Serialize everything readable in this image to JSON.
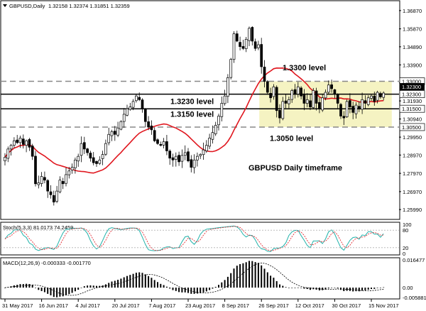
{
  "header": {
    "symbol": "GBPUSD,Daily",
    "ohlc": "1.32158 1.32374 1.31851 1.32359"
  },
  "chart_data": {
    "type": "candlestick",
    "symbol": "GBPUSD",
    "timeframe": "Daily",
    "title": "GBPUSD Daily timeframe",
    "yticks": [
      "1.36870",
      "1.35870",
      "1.34890",
      "1.33900",
      "1.32920",
      "1.31930",
      "1.30940",
      "1.29950",
      "1.28970",
      "1.27970",
      "1.26970",
      "1.25990"
    ],
    "ylim": [
      1.2549,
      1.3737
    ],
    "xticks": [
      {
        "label": "31 May 2017",
        "i": 0
      },
      {
        "label": "16 Jun 2017",
        "i": 12
      },
      {
        "label": "4 Jul 2017",
        "i": 24
      },
      {
        "label": "20 Jul 2017",
        "i": 36
      },
      {
        "label": "7 Aug 2017",
        "i": 48
      },
      {
        "label": "23 Aug 2017",
        "i": 60
      },
      {
        "label": "8 Sep 2017",
        "i": 72
      },
      {
        "label": "26 Sep 2017",
        "i": 84
      },
      {
        "label": "12 Oct 2017",
        "i": 96
      },
      {
        "label": "30 Oct 2017",
        "i": 108
      },
      {
        "label": "15 Nov 2017",
        "i": 120
      }
    ],
    "price_labels": [
      "1.33000",
      "1.32300",
      "1.31500",
      "1.30500"
    ],
    "levels": [
      {
        "price": 1.33,
        "style": "dashed",
        "label": "1.3300 level",
        "label_price": 1.3375
      },
      {
        "price": 1.323,
        "style": "solid",
        "label": "1.3230 level",
        "label_price": 1.3192
      },
      {
        "price": 1.315,
        "style": "solid",
        "label": "1.3150 level",
        "label_price": 1.3122
      },
      {
        "price": 1.305,
        "style": "dashed",
        "label": "1.3050 level",
        "label_price": 1.2989
      }
    ],
    "range_box": {
      "from_i": 84,
      "to_i": 126,
      "top": 1.33,
      "bottom": 1.305,
      "color": "#f5f3c2"
    },
    "ma_color": "#e0161e",
    "candle_bull": "#ffffff",
    "candle_bear": "#000000",
    "close": [
      1.2885,
      1.293,
      1.295,
      1.2975,
      1.2965,
      1.299,
      1.2955,
      1.2975,
      1.294,
      1.289,
      1.274,
      1.2745,
      1.278,
      1.276,
      1.27,
      1.268,
      1.264,
      1.27,
      1.276,
      1.274,
      1.279,
      1.281,
      1.283,
      1.287,
      1.289,
      1.296,
      1.293,
      1.291,
      1.288,
      1.2855,
      1.285,
      1.287,
      1.29,
      1.296,
      1.301,
      1.3025,
      1.301,
      1.3045,
      1.308,
      1.312,
      1.315,
      1.316,
      1.319,
      1.322,
      1.32,
      1.315,
      1.308,
      1.305,
      1.3035,
      1.2975,
      1.296,
      1.295,
      1.297,
      1.292,
      1.288,
      1.287,
      1.289,
      1.286,
      1.2895,
      1.291,
      1.2865,
      1.283,
      1.287,
      1.289,
      1.29,
      1.2925,
      1.295,
      1.299,
      1.302,
      1.306,
      1.311,
      1.318,
      1.322,
      1.332,
      1.342,
      1.356,
      1.352,
      1.349,
      1.348,
      1.353,
      1.359,
      1.352,
      1.348,
      1.35,
      1.338,
      1.33,
      1.324,
      1.321,
      1.327,
      1.314,
      1.31,
      1.319,
      1.318,
      1.32,
      1.325,
      1.323,
      1.327,
      1.322,
      1.318,
      1.32,
      1.316,
      1.325,
      1.318,
      1.315,
      1.321,
      1.324,
      1.328,
      1.326,
      1.323,
      1.318,
      1.311,
      1.31,
      1.319,
      1.316,
      1.313,
      1.317,
      1.315,
      1.32,
      1.318,
      1.321,
      1.322,
      1.319,
      1.324,
      1.3215,
      1.3236
    ],
    "stoch": {
      "label": "Stoch(5,3,3) 81.0173 74.2459",
      "levels": [
        "100",
        "80",
        "20",
        "0"
      ],
      "ylim": [
        0,
        100
      ]
    },
    "macd": {
      "label": "MACD(12,26,9) -0.000333 -0.001770",
      "ticks": [
        "0.016477",
        "0.00",
        "-0.005881"
      ],
      "ylim": [
        -0.005881,
        0.016477
      ]
    }
  }
}
